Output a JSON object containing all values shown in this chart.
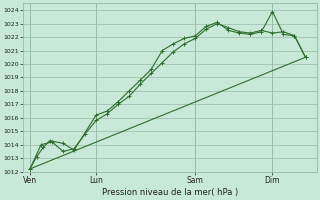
{
  "background_color": "#c8e8d8",
  "grid_color": "#99bbaa",
  "line_color": "#2d6e2d",
  "text_color": "#222222",
  "xlabel_text": "Pression niveau de la mer( hPa )",
  "ylim": [
    1012,
    1024.5
  ],
  "yticks": [
    1012,
    1013,
    1014,
    1015,
    1016,
    1017,
    1018,
    1019,
    1020,
    1021,
    1022,
    1023,
    1024
  ],
  "xtick_labels": [
    "Ven",
    "Lun",
    "Sam",
    "Dim"
  ],
  "xtick_positions": [
    0,
    3,
    7.5,
    11
  ],
  "vline_positions": [
    0,
    3,
    7.5,
    11
  ],
  "xlim": [
    -0.3,
    13.0
  ],
  "trend_x": [
    0,
    12.5
  ],
  "trend_y": [
    1012.2,
    1020.5
  ],
  "series1_x": [
    0,
    0.3,
    0.6,
    0.9,
    1.5,
    2.0,
    3.0,
    3.5,
    4.0,
    4.5,
    5.0,
    5.5,
    6.0,
    6.5,
    7.0,
    7.5,
    8.0,
    8.5,
    9.0,
    9.5,
    10.0,
    10.5,
    11.0,
    11.5,
    12.0,
    12.5
  ],
  "series1_y": [
    1012.2,
    1013.1,
    1013.8,
    1014.3,
    1014.1,
    1013.6,
    1016.2,
    1016.5,
    1017.2,
    1018.0,
    1018.8,
    1019.6,
    1021.0,
    1021.5,
    1021.9,
    1022.1,
    1022.8,
    1023.1,
    1022.5,
    1022.3,
    1022.2,
    1022.4,
    1023.9,
    1022.2,
    1022.1,
    1020.5
  ],
  "series2_x": [
    0,
    0.5,
    1.0,
    1.5,
    2.0,
    2.5,
    3.0,
    3.5,
    4.0,
    4.5,
    5.0,
    5.5,
    6.0,
    6.5,
    7.0,
    7.5,
    8.0,
    8.5,
    9.0,
    9.5,
    10.0,
    10.5,
    11.0,
    11.5,
    12.0,
    12.5
  ],
  "series2_y": [
    1012.2,
    1014.0,
    1014.2,
    1013.5,
    1013.7,
    1014.8,
    1015.8,
    1016.3,
    1017.0,
    1017.6,
    1018.5,
    1019.3,
    1020.1,
    1020.9,
    1021.5,
    1021.9,
    1022.6,
    1023.0,
    1022.7,
    1022.4,
    1022.3,
    1022.5,
    1022.3,
    1022.4,
    1022.1,
    1020.5
  ]
}
